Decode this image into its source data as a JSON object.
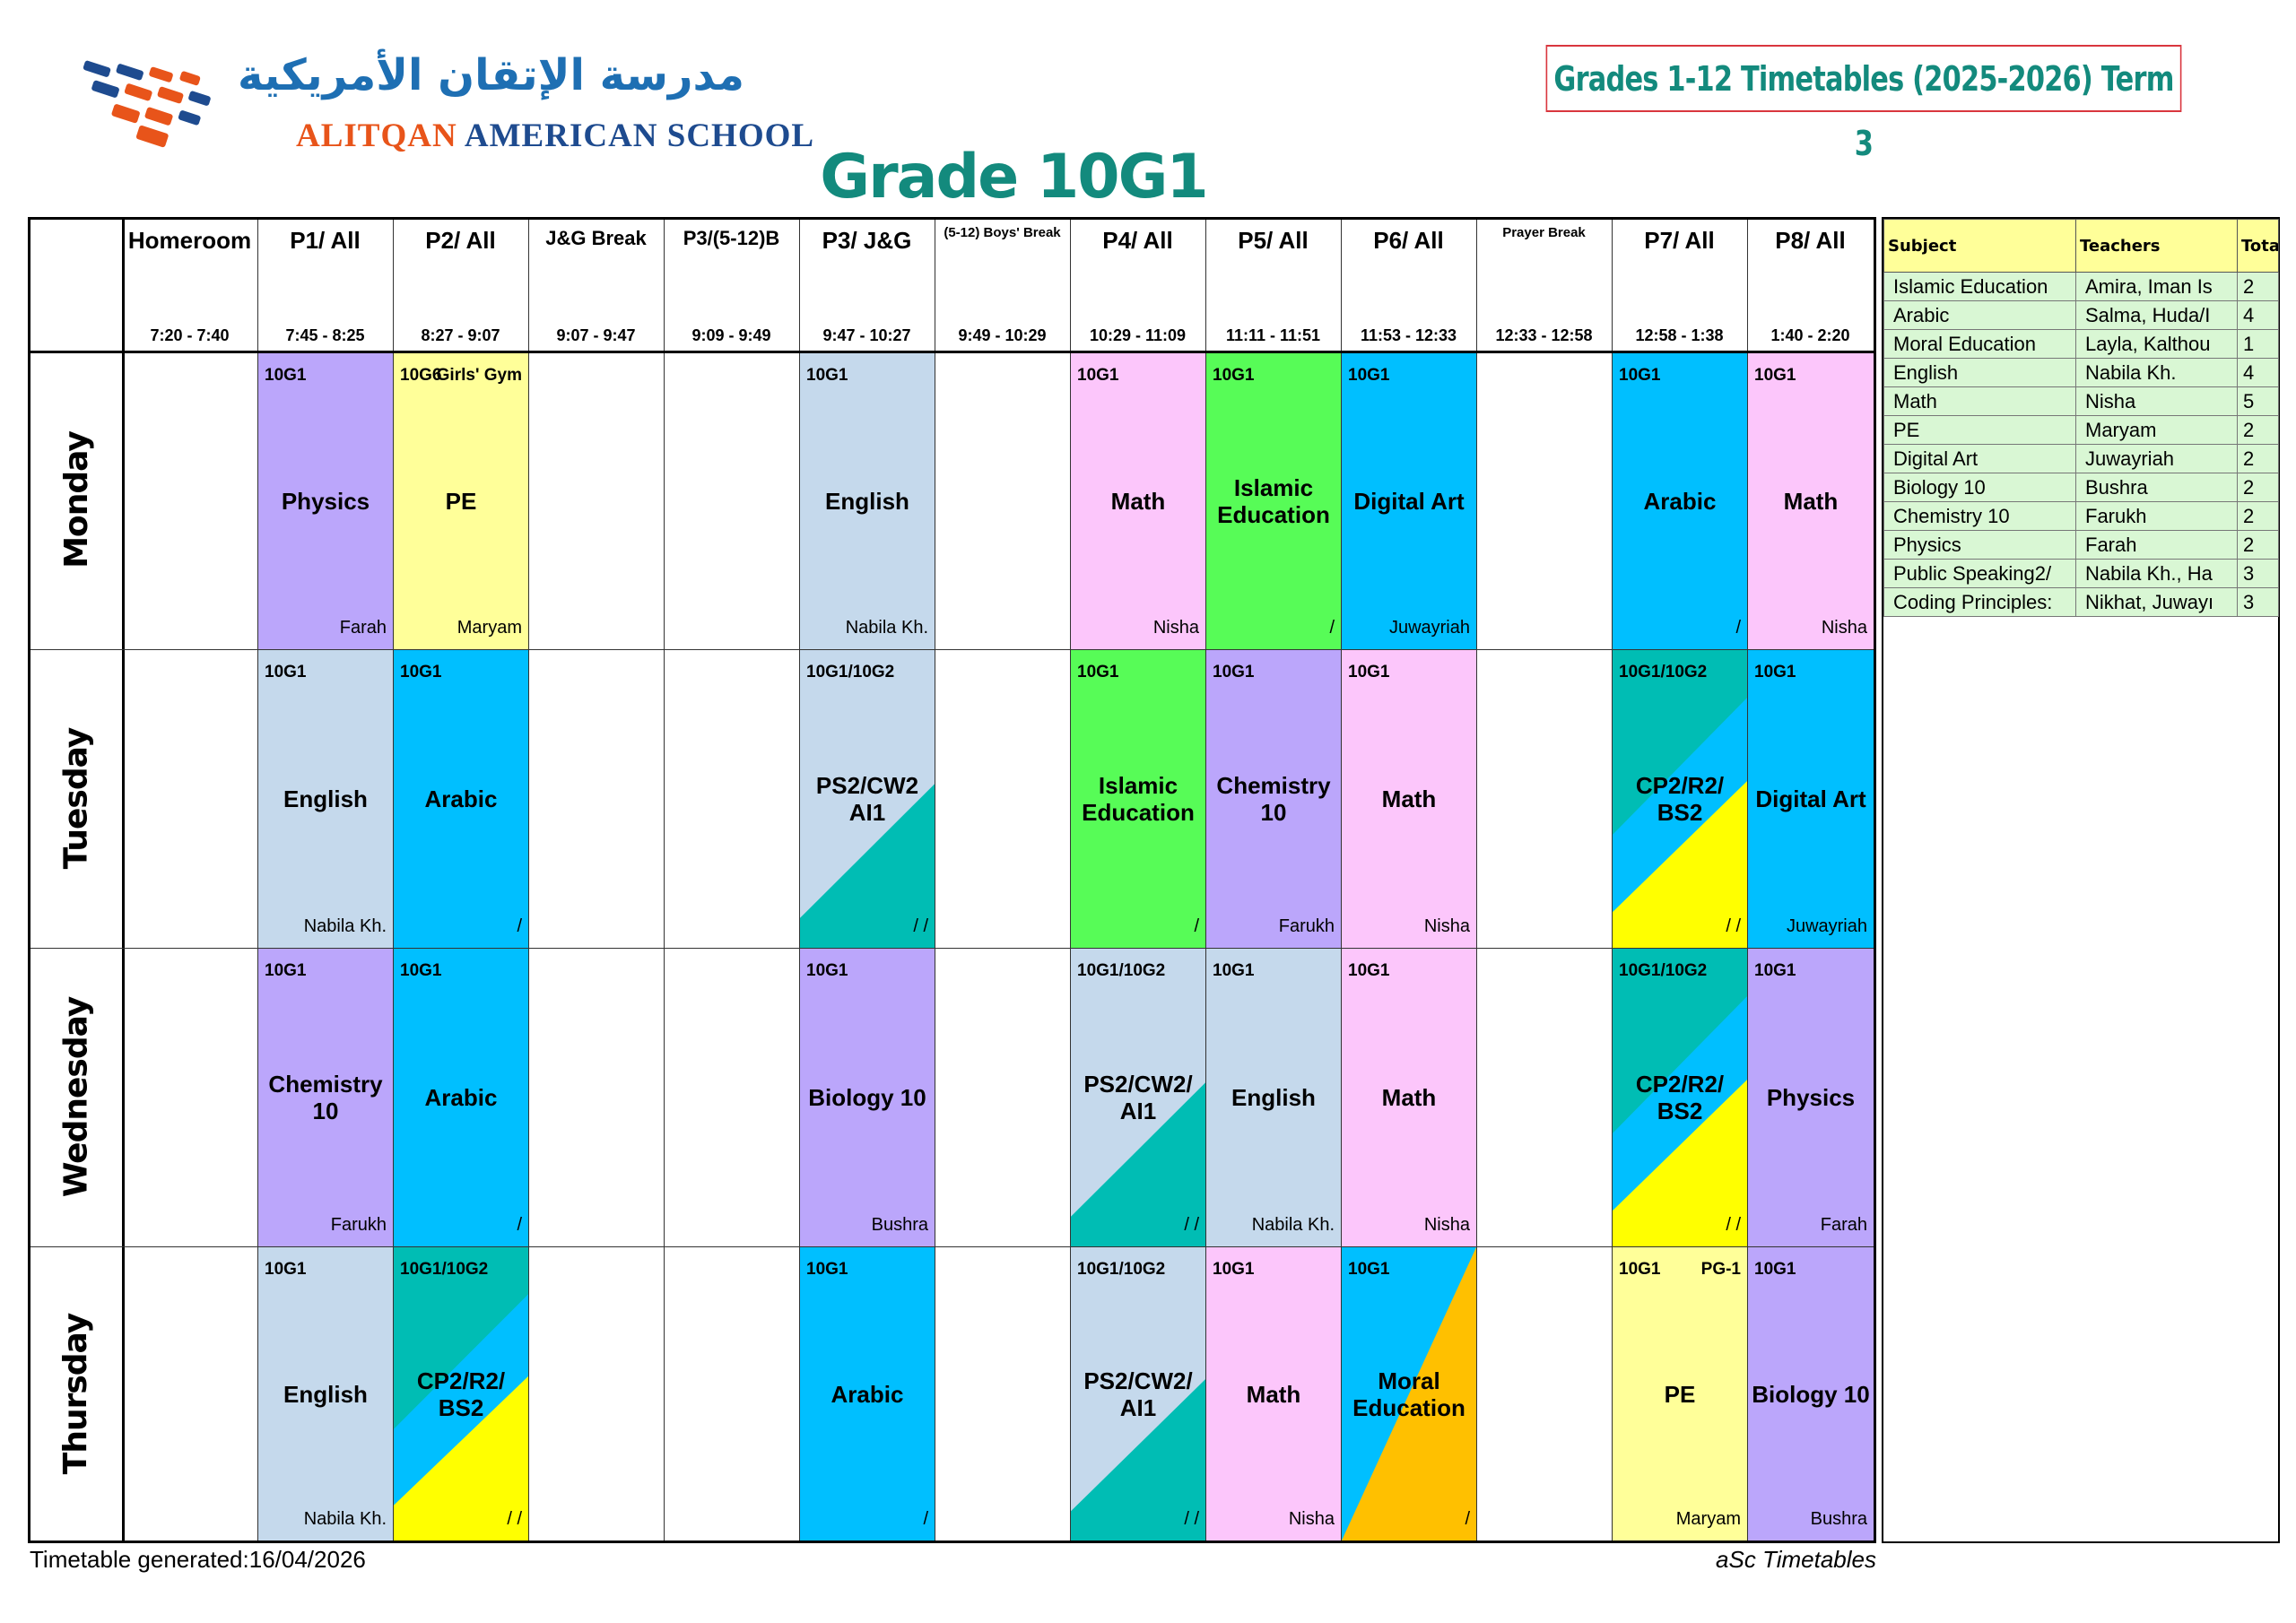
{
  "header": {
    "school_arabic": "مدرسة الإتقان الأمريكية",
    "school_english": "ALITQAN AMERICAN SCHOOL",
    "title": "Grades 1-12 Timetables (2025-2026) Term 3",
    "grade": "Grade 10G1"
  },
  "colors": {
    "purple": "#bba6fb",
    "yellow": "#ffff99",
    "lightblue": "#c5d9ec",
    "pink": "#fcc6fb",
    "green": "#57fc57",
    "cyan": "#00bfff",
    "teal": "#00bdb4",
    "brightyellow": "#ffff00",
    "orange": "#ffc000"
  },
  "columns": [
    {
      "name": "Homeroom",
      "time": "7:20 - 7:40"
    },
    {
      "name": "P1/ All",
      "time": "7:45 - 8:25"
    },
    {
      "name": "P2/ All",
      "time": "8:27 - 9:07"
    },
    {
      "name": "J&G Break",
      "time": "9:07 - 9:47"
    },
    {
      "name": "P3/(5-12)B",
      "time": "9:09 - 9:49"
    },
    {
      "name": "P3/ J&G",
      "time": "9:47 - 10:27"
    },
    {
      "name": "(5-12) Boys' Break",
      "time": "9:49 - 10:29"
    },
    {
      "name": "P4/ All",
      "time": "10:29 - 11:09"
    },
    {
      "name": "P5/ All",
      "time": "11:11 - 11:51"
    },
    {
      "name": "P6/ All",
      "time": "11:53 - 12:33"
    },
    {
      "name": "Prayer Break",
      "time": "12:33 - 12:58"
    },
    {
      "name": "P7/ All",
      "time": "12:58 - 1:38"
    },
    {
      "name": "P8/ All",
      "time": "1:40 - 2:20"
    }
  ],
  "days": [
    "Monday",
    "Tuesday",
    "Wednesday",
    "Thursday"
  ],
  "lessons": [
    {
      "day": 0,
      "col": 1,
      "cls": "10G1",
      "subj": "Physics",
      "teacher": "Farah",
      "color": "purple"
    },
    {
      "day": 0,
      "col": 2,
      "cls": "10G6",
      "room": "Girls' Gym",
      "subj": "PE",
      "teacher": "Maryam",
      "color": "yellow"
    },
    {
      "day": 0,
      "col": 5,
      "cls": "10G1",
      "subj": "English",
      "teacher": "Nabila Kh.",
      "color": "lightblue"
    },
    {
      "day": 0,
      "col": 7,
      "cls": "10G1",
      "subj": "Math",
      "teacher": "Nisha",
      "color": "pink"
    },
    {
      "day": 0,
      "col": 8,
      "cls": "10G1",
      "subj": "Islamic Education",
      "teacher": "/",
      "color": "green"
    },
    {
      "day": 0,
      "col": 9,
      "cls": "10G1",
      "subj": "Digital Art",
      "teacher": "Juwayriah",
      "color": "cyan"
    },
    {
      "day": 0,
      "col": 11,
      "cls": "10G1",
      "subj": "Arabic",
      "teacher": "/",
      "color": "cyan"
    },
    {
      "day": 0,
      "col": 12,
      "cls": "10G1",
      "subj": "Math",
      "teacher": "Nisha",
      "color": "pink"
    },
    {
      "day": 1,
      "col": 1,
      "cls": "10G1",
      "subj": "English",
      "teacher": "Nabila Kh.",
      "color": "lightblue"
    },
    {
      "day": 1,
      "col": 2,
      "cls": "10G1",
      "subj": "Arabic",
      "teacher": "/",
      "color": "cyan"
    },
    {
      "day": 1,
      "col": 5,
      "cls": "10G1/10G2",
      "subj": "PS2/CW2 AI1",
      "teacher": "/ /",
      "color": "lightblue",
      "split": "lb-teal"
    },
    {
      "day": 1,
      "col": 7,
      "cls": "10G1",
      "subj": "Islamic Education",
      "teacher": "/",
      "color": "green"
    },
    {
      "day": 1,
      "col": 8,
      "cls": "10G1",
      "subj": "Chemistry 10",
      "teacher": "Farukh",
      "color": "purple"
    },
    {
      "day": 1,
      "col": 9,
      "cls": "10G1",
      "subj": "Math",
      "teacher": "Nisha",
      "color": "pink"
    },
    {
      "day": 1,
      "col": 11,
      "cls": "10G1/10G2",
      "subj": "CP2/R2/ BS2",
      "teacher": "/ /",
      "color": "cyan",
      "split": "tri"
    },
    {
      "day": 1,
      "col": 12,
      "cls": "10G1",
      "subj": "Digital Art",
      "teacher": "Juwayriah",
      "color": "cyan"
    },
    {
      "day": 2,
      "col": 1,
      "cls": "10G1",
      "subj": "Chemistry 10",
      "teacher": "Farukh",
      "color": "purple"
    },
    {
      "day": 2,
      "col": 2,
      "cls": "10G1",
      "subj": "Arabic",
      "teacher": "/",
      "color": "cyan"
    },
    {
      "day": 2,
      "col": 5,
      "cls": "10G1",
      "subj": "Biology 10",
      "teacher": "Bushra",
      "color": "purple"
    },
    {
      "day": 2,
      "col": 7,
      "cls": "10G1/10G2",
      "subj": "PS2/CW2/ AI1",
      "teacher": "/ /",
      "color": "lightblue",
      "split": "lb-teal"
    },
    {
      "day": 2,
      "col": 8,
      "cls": "10G1",
      "subj": "English",
      "teacher": "Nabila Kh.",
      "color": "lightblue"
    },
    {
      "day": 2,
      "col": 9,
      "cls": "10G1",
      "subj": "Math",
      "teacher": "Nisha",
      "color": "pink"
    },
    {
      "day": 2,
      "col": 11,
      "cls": "10G1/10G2",
      "subj": "CP2/R2/ BS2",
      "teacher": "/ /",
      "color": "cyan",
      "split": "tri"
    },
    {
      "day": 2,
      "col": 12,
      "cls": "10G1",
      "subj": "Physics",
      "teacher": "Farah",
      "color": "purple"
    },
    {
      "day": 3,
      "col": 1,
      "cls": "10G1",
      "subj": "English",
      "teacher": "Nabila Kh.",
      "color": "lightblue"
    },
    {
      "day": 3,
      "col": 2,
      "cls": "10G1/10G2",
      "subj": "CP2/R2/ BS2",
      "teacher": "/ /",
      "color": "cyan",
      "split": "tri"
    },
    {
      "day": 3,
      "col": 5,
      "cls": "10G1",
      "subj": "Arabic",
      "teacher": "/",
      "color": "cyan"
    },
    {
      "day": 3,
      "col": 7,
      "cls": "10G1/10G2",
      "subj": "PS2/CW2/ AI1",
      "teacher": "/ /",
      "color": "lightblue",
      "split": "lb-teal"
    },
    {
      "day": 3,
      "col": 8,
      "cls": "10G1",
      "subj": "Math",
      "teacher": "Nisha",
      "color": "pink"
    },
    {
      "day": 3,
      "col": 9,
      "cls": "10G1",
      "subj": "Moral Education",
      "teacher": "/",
      "color": "cyan",
      "split": "cyan-orange"
    },
    {
      "day": 3,
      "col": 11,
      "cls": "10G1",
      "room": "PG-1",
      "subj": "PE",
      "teacher": "Maryam",
      "color": "yellow"
    },
    {
      "day": 3,
      "col": 12,
      "cls": "10G1",
      "subj": "Biology 10",
      "teacher": "Bushra",
      "color": "purple"
    }
  ],
  "subjects_table": {
    "headers": [
      "Subject",
      "Teachers",
      "Tota"
    ],
    "rows": [
      [
        "Islamic Education",
        "Amira, Iman Is",
        "2"
      ],
      [
        "Arabic",
        "Salma, Huda/I",
        "4"
      ],
      [
        "Moral Education",
        "Layla, Kalthou",
        "1"
      ],
      [
        "English",
        "Nabila Kh.",
        "4"
      ],
      [
        "Math",
        "Nisha",
        "5"
      ],
      [
        "PE",
        "Maryam",
        "2"
      ],
      [
        "Digital Art",
        "Juwayriah",
        "2"
      ],
      [
        "Biology 10",
        "Bushra",
        "2"
      ],
      [
        "Chemistry 10",
        "Farukh",
        "2"
      ],
      [
        "Physics",
        "Farah",
        "2"
      ],
      [
        "Public Speaking2/",
        "Nabila Kh., Ha",
        "3"
      ],
      [
        "Coding Principles:",
        "Nikhat, Juwayı",
        "3"
      ]
    ]
  },
  "footer": {
    "generated": "Timetable generated:16/04/2026",
    "software": "aSc Timetables"
  }
}
